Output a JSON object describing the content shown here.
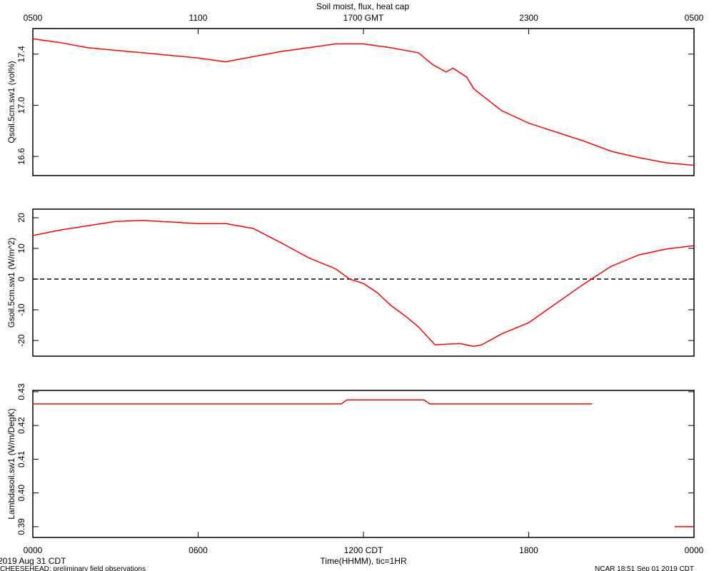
{
  "chart_data": [
    {
      "type": "line",
      "title": "Soil moist, flux, heat cap",
      "ylabel": "Qsoil.5cm.sw1 (vol%)",
      "x": [
        0,
        1,
        2,
        3,
        4,
        5,
        6,
        7,
        8,
        9,
        10,
        11,
        12,
        13,
        14,
        14.5,
        15,
        15.25,
        15.75,
        16,
        17,
        18,
        19,
        20,
        21,
        22,
        23,
        24
      ],
      "series": [
        {
          "color": "#ff0000",
          "values": [
            17.52,
            17.49,
            17.45,
            17.43,
            17.41,
            17.39,
            17.37,
            17.34,
            17.38,
            17.42,
            17.45,
            17.48,
            17.48,
            17.45,
            17.41,
            17.32,
            17.26,
            17.29,
            17.22,
            17.13,
            16.96,
            16.86,
            16.79,
            16.72,
            16.64,
            16.59,
            16.55,
            16.53
          ]
        }
      ],
      "xlim": [
        0,
        24
      ],
      "ylim": [
        16.45,
        17.6
      ],
      "yticks": [
        16.6,
        {
          "value": 17,
          "label": "17.0"
        },
        17.4
      ],
      "x2ticks": [
        {
          "value": 0,
          "label": "0500"
        },
        {
          "value": 6,
          "label": "1100"
        },
        {
          "value": 12,
          "label": "1700 GMT"
        },
        {
          "value": 18,
          "label": "2300"
        },
        {
          "value": 24,
          "label": "0500"
        }
      ]
    },
    {
      "type": "line",
      "ylabel": "Gsoil.5cm.sw1 (W/m^2)",
      "x": [
        0,
        1,
        2,
        3,
        4,
        5,
        6,
        7,
        8,
        9,
        10,
        11,
        11.5,
        12,
        12.5,
        13,
        13.5,
        14,
        14.6,
        15,
        15.5,
        16,
        16.3,
        17,
        18,
        19,
        20,
        21,
        22,
        23,
        24
      ],
      "series": [
        {
          "color": "#ff0000",
          "values": [
            14.2,
            16,
            17.4,
            18.8,
            19.1,
            18.6,
            18.1,
            18.1,
            16.5,
            11.9,
            7,
            3.3,
            0,
            -1.4,
            -4.4,
            -8.6,
            -11.9,
            -15.6,
            -21.4,
            -21.2,
            -21,
            -21.9,
            -21.4,
            -17.9,
            -14.2,
            -7.9,
            -1.6,
            4.2,
            7.9,
            9.8,
            10.9
          ]
        }
      ],
      "hline": 0,
      "xlim": [
        0,
        24
      ],
      "ylim": [
        -25.1,
        22.8
      ],
      "yticks": [
        -20,
        -10,
        0,
        10,
        20
      ]
    },
    {
      "type": "line",
      "ylabel": "Lambdasoil.sw1 (W/m/DegK)",
      "xlabel": "Time(HHMM), tic=1HR",
      "x": [
        0,
        11.2,
        11.4,
        14.2,
        14.4,
        20.3,
        20.4,
        23.3,
        24
      ],
      "series": [
        {
          "color": "#ff0000",
          "values": [
            0.4264,
            0.4264,
            0.4276,
            0.4276,
            0.4264,
            0.4264,
            null,
            0.39,
            0.39
          ]
        }
      ],
      "xlim": [
        0,
        24
      ],
      "ylim": [
        0.3868,
        0.4304
      ],
      "yticks": [
        0.39,
        {
          "value": 0.4,
          "label": "0.40"
        },
        0.41,
        0.42,
        0.43
      ],
      "xticks": [
        {
          "value": 0,
          "label": "0000"
        },
        {
          "value": 6,
          "label": "0600"
        },
        {
          "value": 12,
          "label": "1200 CDT"
        },
        {
          "value": 18,
          "label": "1800"
        },
        {
          "value": 24,
          "label": "0000"
        }
      ]
    }
  ],
  "footer": {
    "date": "2019 Aug 31 CDT",
    "project": "CHEESEHEAD: preliminary field observations",
    "stamp": "NCAR 18:51 Sep 01 2019 CDT"
  }
}
